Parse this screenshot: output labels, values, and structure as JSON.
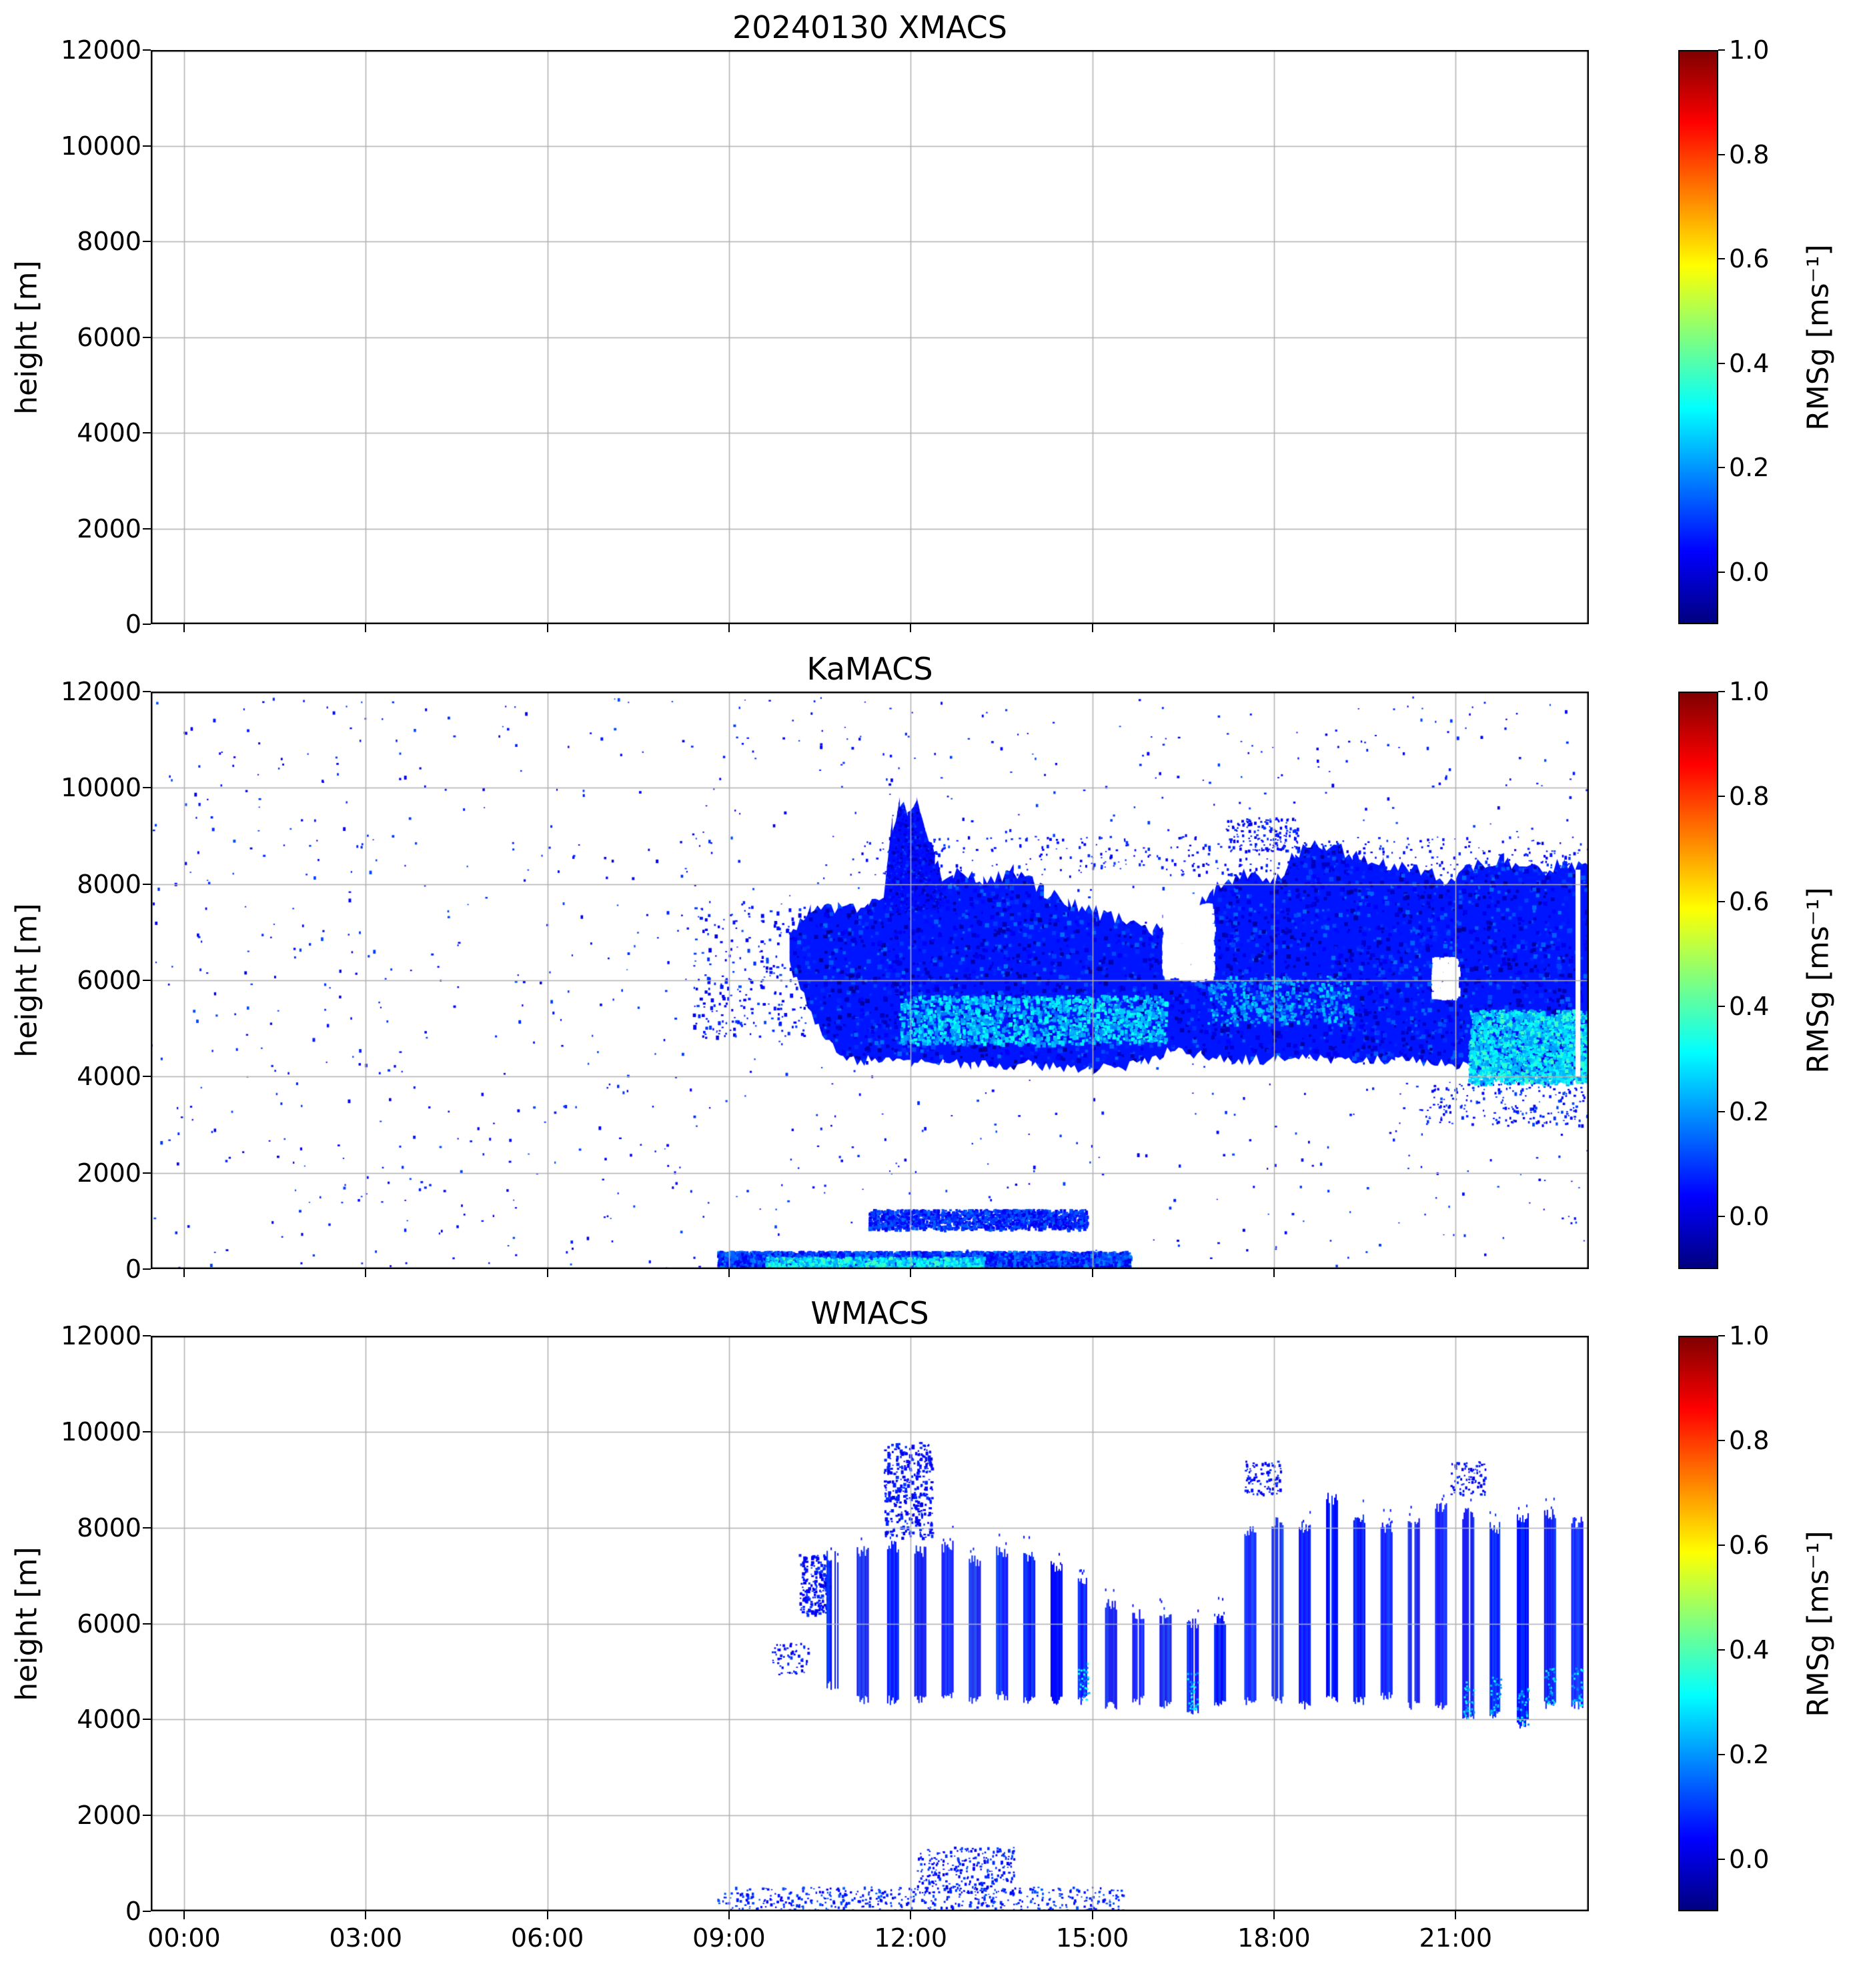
{
  "figure": {
    "background": "#ffffff"
  },
  "chart_data": [
    {
      "type": "heatmap",
      "title": "20240130 XMACS",
      "ylabel": "height [m]",
      "xlabel": "",
      "xlim": [
        -0.55,
        23.2
      ],
      "ylim": [
        0,
        12000
      ],
      "grid": true,
      "show_xticklabels": false,
      "yticks": [
        [
          0,
          "0"
        ],
        [
          2000,
          "2000"
        ],
        [
          4000,
          "4000"
        ],
        [
          6000,
          "6000"
        ],
        [
          8000,
          "8000"
        ],
        [
          10000,
          "10000"
        ],
        [
          12000,
          "12000"
        ]
      ],
      "xticks": [
        [
          0,
          "00:00"
        ],
        [
          3,
          "03:00"
        ],
        [
          6,
          "06:00"
        ],
        [
          9,
          "09:00"
        ],
        [
          12,
          "12:00"
        ],
        [
          15,
          "15:00"
        ],
        [
          18,
          "18:00"
        ],
        [
          21,
          "21:00"
        ]
      ],
      "colorbar": {
        "label": "RMSg [ms⁻¹]",
        "vmin": -0.1,
        "vmax": 1.0,
        "ticks": [
          0.0,
          0.2,
          0.4,
          0.6,
          0.8,
          1.0
        ],
        "colormap": "jet",
        "anchors": [
          "#00007f",
          "#0000ff",
          "#00ffff",
          "#ffff00",
          "#ff0000",
          "#7f0000"
        ]
      },
      "seed": 3,
      "elements": []
    },
    {
      "type": "heatmap",
      "title": "KaMACS",
      "ylabel": "height [m]",
      "xlabel": "",
      "xlim": [
        -0.55,
        23.2
      ],
      "ylim": [
        0,
        12000
      ],
      "grid": true,
      "show_xticklabels": false,
      "yticks": [
        [
          0,
          "0"
        ],
        [
          2000,
          "2000"
        ],
        [
          4000,
          "4000"
        ],
        [
          6000,
          "6000"
        ],
        [
          8000,
          "8000"
        ],
        [
          10000,
          "10000"
        ],
        [
          12000,
          "12000"
        ]
      ],
      "xticks": [
        [
          0,
          "00:00"
        ],
        [
          3,
          "03:00"
        ],
        [
          6,
          "06:00"
        ],
        [
          9,
          "09:00"
        ],
        [
          12,
          "12:00"
        ],
        [
          15,
          "15:00"
        ],
        [
          18,
          "18:00"
        ],
        [
          21,
          "21:00"
        ]
      ],
      "colorbar": {
        "label": "RMSg [ms⁻¹]",
        "vmin": -0.1,
        "vmax": 1.0,
        "ticks": [
          0.0,
          0.2,
          0.4,
          0.6,
          0.8,
          1.0
        ],
        "colormap": "jet",
        "anchors": [
          "#00007f",
          "#0000ff",
          "#00ffff",
          "#ffff00",
          "#ff0000",
          "#7f0000"
        ]
      },
      "seed": 11,
      "elements": [
        {
          "type": "speckle",
          "t": [
            -0.55,
            23.2
          ],
          "h": [
            0,
            11900
          ],
          "n": 1100,
          "v": [
            0.0,
            0.12
          ],
          "s": [
            2,
            4
          ]
        },
        {
          "type": "speckle",
          "t": [
            8.4,
            10.3
          ],
          "h": [
            4800,
            7600
          ],
          "n": 260,
          "v": [
            0.0,
            0.12
          ],
          "s": [
            2,
            5
          ]
        },
        {
          "type": "band",
          "top": [
            [
              10.0,
              6900
            ],
            [
              10.35,
              7450
            ],
            [
              10.8,
              7500
            ],
            [
              11.3,
              7600
            ],
            [
              11.6,
              7650
            ],
            [
              11.95,
              8050
            ],
            [
              12.3,
              7850
            ],
            [
              12.7,
              8250
            ],
            [
              13.2,
              8050
            ],
            [
              13.7,
              8250
            ],
            [
              14.2,
              7850
            ],
            [
              14.6,
              7650
            ],
            [
              15.0,
              7450
            ],
            [
              15.5,
              7250
            ],
            [
              16.0,
              7050
            ],
            [
              16.5,
              7250
            ],
            [
              17.0,
              7850
            ],
            [
              17.5,
              8250
            ],
            [
              18.0,
              8050
            ],
            [
              18.35,
              8650
            ],
            [
              18.8,
              8850
            ],
            [
              19.3,
              8650
            ],
            [
              19.8,
              8450
            ],
            [
              20.3,
              8350
            ],
            [
              20.8,
              8050
            ],
            [
              21.3,
              8350
            ],
            [
              21.8,
              8550
            ],
            [
              22.3,
              8250
            ],
            [
              22.8,
              8450
            ],
            [
              23.2,
              8300
            ]
          ],
          "bot": [
            [
              10.0,
              6300
            ],
            [
              10.3,
              5500
            ],
            [
              10.6,
              4700
            ],
            [
              11.0,
              4350
            ],
            [
              12.0,
              4300
            ],
            [
              13.0,
              4250
            ],
            [
              14.0,
              4250
            ],
            [
              15.0,
              4150
            ],
            [
              15.8,
              4250
            ],
            [
              16.3,
              4550
            ],
            [
              16.8,
              4450
            ],
            [
              17.3,
              4350
            ],
            [
              18.0,
              4350
            ],
            [
              19.0,
              4350
            ],
            [
              20.0,
              4350
            ],
            [
              21.0,
              4250
            ],
            [
              21.5,
              4050
            ],
            [
              22.0,
              3950
            ],
            [
              22.5,
              4000
            ],
            [
              23.0,
              3900
            ],
            [
              23.2,
              3950
            ]
          ],
          "v": 0.06,
          "texture": {
            "n": 5200,
            "v": [
              -0.08,
              0.16
            ],
            "s": [
              3,
              7
            ]
          }
        },
        {
          "type": "band",
          "top": [
            [
              11.55,
              7600
            ],
            [
              11.7,
              9250
            ],
            [
              11.82,
              9700
            ],
            [
              11.95,
              9550
            ],
            [
              12.1,
              9650
            ],
            [
              12.25,
              9150
            ],
            [
              12.4,
              8550
            ],
            [
              12.55,
              7900
            ]
          ],
          "bot": [
            [
              11.55,
              7450
            ],
            [
              12.55,
              7450
            ]
          ],
          "v": 0.05,
          "texture": {
            "n": 700,
            "v": [
              -0.08,
              0.12
            ],
            "s": [
              2,
              5
            ]
          }
        },
        {
          "type": "speckle",
          "t": [
            11.8,
            16.2
          ],
          "h": [
            4700,
            5700
          ],
          "n": 1500,
          "v": [
            0.16,
            0.34
          ],
          "s": [
            3,
            6
          ]
        },
        {
          "type": "speckle",
          "t": [
            21.2,
            23.2
          ],
          "h": [
            3900,
            5400
          ],
          "n": 1900,
          "v": [
            0.18,
            0.38
          ],
          "s": [
            3,
            6
          ]
        },
        {
          "type": "speckle",
          "t": [
            16.9,
            19.3
          ],
          "h": [
            5100,
            6100
          ],
          "n": 450,
          "v": [
            0.14,
            0.28
          ],
          "s": [
            3,
            5
          ]
        },
        {
          "type": "speckle",
          "t": [
            16.15,
            16.95
          ],
          "h": [
            6100,
            7600
          ],
          "n": 1300,
          "v": null,
          "s": [
            4,
            9
          ]
        },
        {
          "type": "speckle",
          "t": [
            20.6,
            21.0
          ],
          "h": [
            5700,
            6500
          ],
          "n": 300,
          "v": null,
          "s": [
            4,
            8
          ]
        },
        {
          "type": "speckle",
          "t": [
            11.0,
            23.2
          ],
          "h": [
            8200,
            9000
          ],
          "n": 420,
          "v": [
            0.0,
            0.1
          ],
          "s": [
            2,
            4
          ]
        },
        {
          "type": "speckle",
          "t": [
            17.2,
            18.4
          ],
          "h": [
            8700,
            9400
          ],
          "n": 160,
          "v": [
            0.0,
            0.1
          ],
          "s": [
            2,
            4
          ]
        },
        {
          "type": "speckle",
          "t": [
            11.3,
            14.9
          ],
          "h": [
            850,
            1250
          ],
          "n": 1600,
          "v": [
            0.0,
            0.16
          ],
          "s": [
            3,
            5
          ]
        },
        {
          "type": "speckle",
          "t": [
            8.8,
            15.6
          ],
          "h": [
            0,
            380
          ],
          "n": 5200,
          "v": [
            0.0,
            0.2
          ],
          "s": [
            3,
            6
          ]
        },
        {
          "type": "speckle",
          "t": [
            9.6,
            13.2
          ],
          "h": [
            30,
            260
          ],
          "n": 900,
          "v": [
            0.18,
            0.4
          ],
          "s": [
            3,
            5
          ]
        },
        {
          "type": "speckle",
          "t": [
            20.5,
            23.2
          ],
          "h": [
            3000,
            3900
          ],
          "n": 220,
          "v": [
            0.0,
            0.12
          ],
          "s": [
            2,
            4
          ]
        },
        {
          "type": "rect",
          "t": [
            22.98,
            23.06
          ],
          "h": [
            4000,
            8300
          ],
          "v": null
        }
      ]
    },
    {
      "type": "heatmap",
      "title": "WMACS",
      "ylabel": "height [m]",
      "xlabel": "",
      "xlim": [
        -0.55,
        23.2
      ],
      "ylim": [
        0,
        12000
      ],
      "grid": true,
      "show_xticklabels": true,
      "yticks": [
        [
          0,
          "0"
        ],
        [
          2000,
          "2000"
        ],
        [
          4000,
          "4000"
        ],
        [
          6000,
          "6000"
        ],
        [
          8000,
          "8000"
        ],
        [
          10000,
          "10000"
        ],
        [
          12000,
          "12000"
        ]
      ],
      "xticks": [
        [
          0,
          "00:00"
        ],
        [
          3,
          "03:00"
        ],
        [
          6,
          "06:00"
        ],
        [
          9,
          "09:00"
        ],
        [
          12,
          "12:00"
        ],
        [
          15,
          "15:00"
        ],
        [
          18,
          "18:00"
        ],
        [
          21,
          "21:00"
        ]
      ],
      "colorbar": {
        "label": "RMSg [ms⁻¹]",
        "vmin": -0.1,
        "vmax": 1.0,
        "ticks": [
          0.0,
          0.2,
          0.4,
          0.6,
          0.8,
          1.0
        ],
        "colormap": "jet",
        "anchors": [
          "#00007f",
          "#0000ff",
          "#00ffff",
          "#ffff00",
          "#ff0000",
          "#7f0000"
        ]
      },
      "seed": 77,
      "elements": [
        {
          "type": "speckle",
          "t": [
            8.8,
            15.5
          ],
          "h": [
            0,
            520
          ],
          "n": 520,
          "v": [
            0.0,
            0.14
          ],
          "s": [
            2,
            4
          ]
        },
        {
          "type": "speckle",
          "t": [
            12.1,
            13.7
          ],
          "h": [
            400,
            1350
          ],
          "n": 260,
          "v": [
            0.0,
            0.12
          ],
          "s": [
            2,
            4
          ]
        },
        {
          "type": "speckle",
          "t": [
            11.55,
            12.35
          ],
          "h": [
            7800,
            9800
          ],
          "n": 320,
          "v": [
            0.0,
            0.1
          ],
          "s": [
            2,
            5
          ]
        },
        {
          "type": "speckle",
          "t": [
            10.15,
            10.65
          ],
          "h": [
            6200,
            7450
          ],
          "n": 200,
          "v": [
            0.0,
            0.1
          ],
          "s": [
            2,
            5
          ]
        },
        {
          "type": "speckle",
          "t": [
            9.7,
            10.3
          ],
          "h": [
            4900,
            5600
          ],
          "n": 60,
          "v": [
            0.0,
            0.1
          ],
          "s": [
            2,
            4
          ]
        },
        {
          "type": "speckle",
          "t": [
            17.5,
            18.1
          ],
          "h": [
            8700,
            9400
          ],
          "n": 90,
          "v": [
            0.0,
            0.1
          ],
          "s": [
            2,
            4
          ]
        },
        {
          "type": "speckle",
          "t": [
            20.9,
            21.5
          ],
          "h": [
            8700,
            9400
          ],
          "n": 80,
          "v": [
            0.0,
            0.1
          ],
          "s": [
            2,
            4
          ]
        },
        {
          "type": "bars",
          "w": 0.18,
          "v": 0.06,
          "items": [
            [
              10.7,
              4700,
              7400,
              0
            ],
            [
              11.2,
              4400,
              7500,
              0
            ],
            [
              11.7,
              4400,
              7600,
              0
            ],
            [
              12.15,
              4400,
              7500,
              0
            ],
            [
              12.6,
              4500,
              7600,
              0
            ],
            [
              13.05,
              4400,
              7300,
              0
            ],
            [
              13.5,
              4500,
              7500,
              0
            ],
            [
              13.95,
              4400,
              7400,
              0
            ],
            [
              14.4,
              4400,
              7200,
              0
            ],
            [
              14.85,
              4400,
              6900,
              1
            ],
            [
              15.3,
              4300,
              6400,
              0
            ],
            [
              15.75,
              4400,
              6200,
              0
            ],
            [
              16.2,
              4300,
              6100,
              0
            ],
            [
              16.65,
              4200,
              6000,
              1
            ],
            [
              17.1,
              4300,
              6100,
              0
            ],
            [
              17.6,
              4400,
              7900,
              0
            ],
            [
              18.05,
              4400,
              8100,
              0
            ],
            [
              18.5,
              4300,
              8000,
              0
            ],
            [
              18.95,
              4400,
              8600,
              0
            ],
            [
              19.4,
              4400,
              8200,
              0
            ],
            [
              19.85,
              4500,
              8000,
              0
            ],
            [
              20.3,
              4300,
              8200,
              0
            ],
            [
              20.75,
              4300,
              8400,
              0
            ],
            [
              21.2,
              4000,
              8300,
              1
            ],
            [
              21.65,
              4100,
              8000,
              1
            ],
            [
              22.1,
              3900,
              8200,
              1
            ],
            [
              22.55,
              4300,
              8300,
              1
            ],
            [
              23.0,
              4300,
              8100,
              1
            ]
          ]
        }
      ]
    }
  ]
}
